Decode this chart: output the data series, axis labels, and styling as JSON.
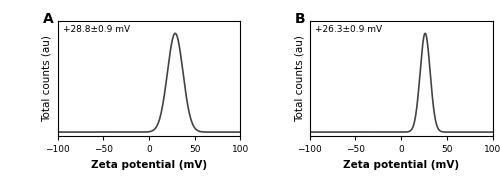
{
  "panel_A": {
    "label": "A",
    "annotation": "+28.8±0.9 mV",
    "mean": 28.8,
    "std": 8.5,
    "amplitude": 1.0
  },
  "panel_B": {
    "label": "B",
    "annotation": "+26.3±0.9 mV",
    "mean": 26.3,
    "std": 5.5,
    "amplitude": 1.0
  },
  "xlim": [
    -100,
    100
  ],
  "xticks": [
    -100,
    -50,
    0,
    50,
    100
  ],
  "xlabel": "Zeta potential (mV)",
  "ylabel": "Total counts (au)",
  "line_color": "#444444",
  "line_width": 1.2,
  "background_color": "#ffffff",
  "annotation_fontsize": 6.5,
  "axis_label_fontsize": 7.5,
  "tick_fontsize": 6.5,
  "panel_label_fontsize": 10
}
